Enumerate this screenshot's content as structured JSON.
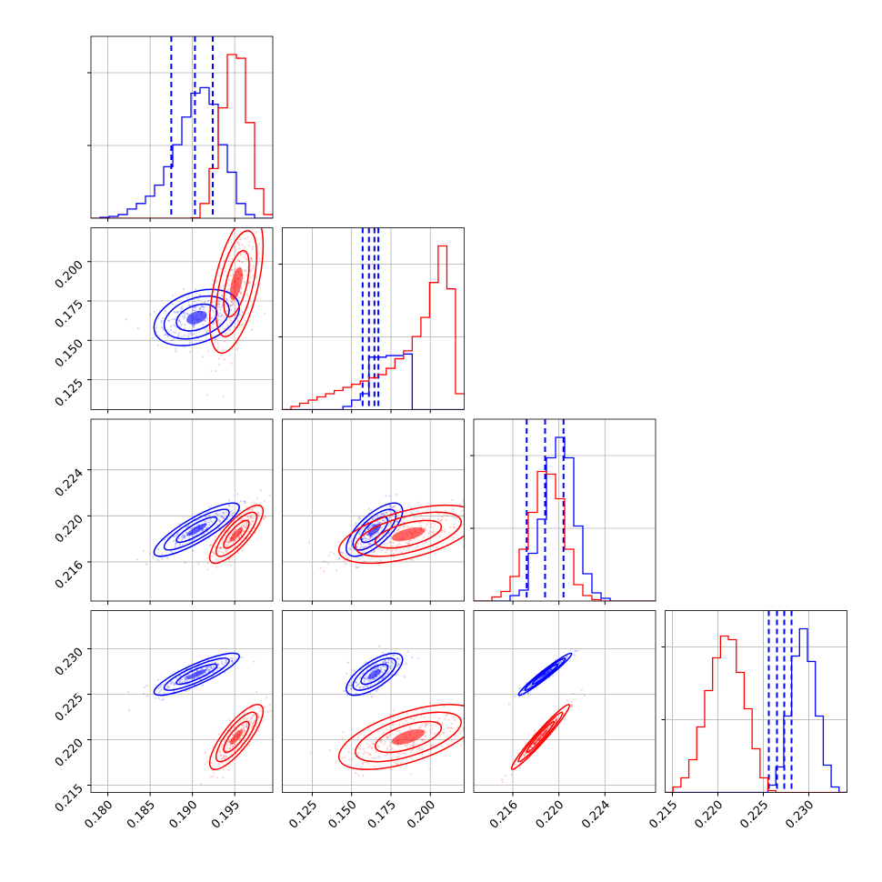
{
  "colors": {
    "blue": "#0000ff",
    "red": "#ff0000",
    "grid": "#b0b0b0",
    "frame": "#000000"
  },
  "chart_data": {
    "type": "corner",
    "grid": true,
    "parameters": [
      {
        "range": [
          0.178,
          0.1995
        ],
        "ticks": [
          "0.180",
          "0.185",
          "0.190",
          "0.195"
        ]
      },
      {
        "range": [
          0.106,
          0.2215
        ],
        "ticks": [
          "0.125",
          "0.150",
          "0.175",
          "0.200"
        ]
      },
      {
        "range": [
          0.2126,
          0.2284
        ],
        "ticks": [
          "0.216",
          "0.220",
          "0.224"
        ]
      },
      {
        "range": [
          0.2142,
          0.2342
        ],
        "ticks": [
          "0.215",
          "0.220",
          "0.225",
          "0.230"
        ]
      }
    ],
    "diagonal_hist_scale_ticks": 3,
    "series": [
      {
        "color": "blue",
        "quantiles": [
          [
            0.1875,
            0.1903,
            0.1924
          ],
          [
            0.157,
            0.161,
            0.1645,
            0.167
          ],
          [
            0.2172,
            0.2188,
            0.2204
          ],
          [
            0.2256,
            0.2265,
            0.2273,
            0.2281
          ]
        ],
        "hist": [
          [
            0,
            0.005,
            0.01,
            0.02,
            0.05,
            0.08,
            0.12,
            0.18,
            0.28,
            0.4,
            0.55,
            0.68,
            0.71,
            0.62,
            0.4,
            0.25,
            0.08,
            0.02,
            0,
            0
          ],
          [
            0,
            0,
            0,
            0,
            0,
            0,
            0,
            0.02,
            0.06,
            0.1,
            0.33,
            0.33,
            0.34,
            0.34,
            0.35,
            0,
            0,
            0,
            0,
            0,
            0
          ],
          [
            0,
            0,
            0,
            0,
            0.04,
            0.08,
            0.35,
            0.6,
            1.05,
            1.2,
            1.05,
            0.55,
            0.2,
            0.06,
            0.02,
            0,
            0,
            0,
            0,
            0
          ],
          [
            0,
            0,
            0,
            0,
            0,
            0,
            0,
            0,
            0,
            0,
            0,
            0,
            0,
            0.04,
            0.14,
            0.42,
            0.75,
            0.9,
            0.72,
            0.42,
            0.15,
            0.03,
            0
          ]
        ]
      },
      {
        "color": "red",
        "quantiles": null,
        "hist": [
          [
            0,
            0,
            0,
            0,
            0,
            0,
            0,
            0,
            0,
            0,
            0,
            0.002,
            0.08,
            0.27,
            0.6,
            0.89,
            0.87,
            0.52,
            0.16,
            0.02
          ],
          [
            0,
            0.02,
            0.04,
            0.06,
            0.08,
            0.1,
            0.12,
            0.14,
            0.16,
            0.18,
            0.2,
            0.22,
            0.26,
            0.32,
            0.37,
            0.46,
            0.58,
            0.8,
            1.03,
            0.76,
            0.1
          ],
          [
            0,
            0,
            0.03,
            0.07,
            0.18,
            0.38,
            0.65,
            0.95,
            0.93,
            0.75,
            0.38,
            0.12,
            0.04,
            0.01,
            0,
            0,
            0,
            0,
            0,
            0
          ],
          [
            0,
            0.03,
            0.08,
            0.18,
            0.36,
            0.56,
            0.74,
            0.86,
            0.84,
            0.66,
            0.46,
            0.24,
            0.08,
            0.01,
            0,
            0,
            0,
            0,
            0,
            0,
            0,
            0,
            0
          ]
        ]
      }
    ],
    "scatter_clusters": [
      {
        "color": "blue",
        "mean": [
          0.1905,
          0.1645,
          0.2188,
          0.2272
        ],
        "sd": [
          0.0024,
          0.0085,
          0.0011,
          0.0011
        ],
        "corr": {
          "0-1": 0.35,
          "0-2": 0.85,
          "0-3": 0.85,
          "1-2": 0.7,
          "1-3": 0.7,
          "2-3": 0.97
        }
      },
      {
        "color": "red",
        "mean": [
          0.1952,
          0.186,
          0.2184,
          0.2203
        ],
        "sd": [
          0.0015,
          0.021,
          0.0012,
          0.0017
        ],
        "corr": {
          "0-1": 0.55,
          "0-2": 0.8,
          "0-3": 0.8,
          "1-2": 0.55,
          "1-3": 0.6,
          "2-3": 0.97
        }
      }
    ]
  }
}
